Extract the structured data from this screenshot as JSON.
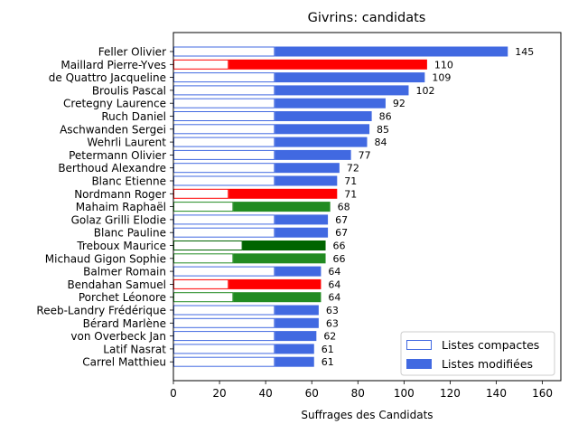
{
  "chart_data": {
    "type": "bar",
    "orientation": "horizontal",
    "title": "Givrins: candidats",
    "xlabel": "Suffrages des Candidats",
    "ylabel": "",
    "xlim": [
      0,
      168
    ],
    "xticks": [
      0,
      20,
      40,
      60,
      80,
      100,
      120,
      140,
      160
    ],
    "grid": false,
    "legend_position": "lower right",
    "legend": [
      {
        "label": "Listes compactes",
        "style": "outline",
        "color": "#4169e1"
      },
      {
        "label": "Listes modifiées",
        "style": "filled",
        "color": "#4169e1"
      }
    ],
    "colors": {
      "blue": "#4169e1",
      "red": "#ff0000",
      "green": "#228b22",
      "darkgreen": "#006400"
    },
    "candidates": [
      {
        "name": "Feller Olivier",
        "compact": 44,
        "total": 145,
        "color": "#4169e1"
      },
      {
        "name": "Maillard Pierre-Yves",
        "compact": 24,
        "total": 110,
        "color": "#ff0000"
      },
      {
        "name": "de Quattro Jacqueline",
        "compact": 44,
        "total": 109,
        "color": "#4169e1"
      },
      {
        "name": "Broulis Pascal",
        "compact": 44,
        "total": 102,
        "color": "#4169e1"
      },
      {
        "name": "Cretegny Laurence",
        "compact": 44,
        "total": 92,
        "color": "#4169e1"
      },
      {
        "name": "Ruch Daniel",
        "compact": 44,
        "total": 86,
        "color": "#4169e1"
      },
      {
        "name": "Aschwanden Sergei",
        "compact": 44,
        "total": 85,
        "color": "#4169e1"
      },
      {
        "name": "Wehrli Laurent",
        "compact": 44,
        "total": 84,
        "color": "#4169e1"
      },
      {
        "name": "Petermann Olivier",
        "compact": 44,
        "total": 77,
        "color": "#4169e1"
      },
      {
        "name": "Berthoud Alexandre",
        "compact": 44,
        "total": 72,
        "color": "#4169e1"
      },
      {
        "name": "Blanc Etienne",
        "compact": 44,
        "total": 71,
        "color": "#4169e1"
      },
      {
        "name": "Nordmann Roger",
        "compact": 24,
        "total": 71,
        "color": "#ff0000"
      },
      {
        "name": "Mahaim Raphaël",
        "compact": 26,
        "total": 68,
        "color": "#228b22"
      },
      {
        "name": "Golaz Grilli Elodie",
        "compact": 44,
        "total": 67,
        "color": "#4169e1"
      },
      {
        "name": "Blanc Pauline",
        "compact": 44,
        "total": 67,
        "color": "#4169e1"
      },
      {
        "name": "Treboux Maurice",
        "compact": 30,
        "total": 66,
        "color": "#006400"
      },
      {
        "name": "Michaud Gigon Sophie",
        "compact": 26,
        "total": 66,
        "color": "#228b22"
      },
      {
        "name": "Balmer Romain",
        "compact": 44,
        "total": 64,
        "color": "#4169e1"
      },
      {
        "name": "Bendahan Samuel",
        "compact": 24,
        "total": 64,
        "color": "#ff0000"
      },
      {
        "name": "Porchet Léonore",
        "compact": 26,
        "total": 64,
        "color": "#228b22"
      },
      {
        "name": "Reeb-Landry Frédérique",
        "compact": 44,
        "total": 63,
        "color": "#4169e1"
      },
      {
        "name": "Bérard Marlène",
        "compact": 44,
        "total": 63,
        "color": "#4169e1"
      },
      {
        "name": "von Overbeck Jan",
        "compact": 44,
        "total": 62,
        "color": "#4169e1"
      },
      {
        "name": "Latif Nasrat",
        "compact": 44,
        "total": 61,
        "color": "#4169e1"
      },
      {
        "name": "Carrel Matthieu",
        "compact": 44,
        "total": 61,
        "color": "#4169e1"
      }
    ]
  }
}
